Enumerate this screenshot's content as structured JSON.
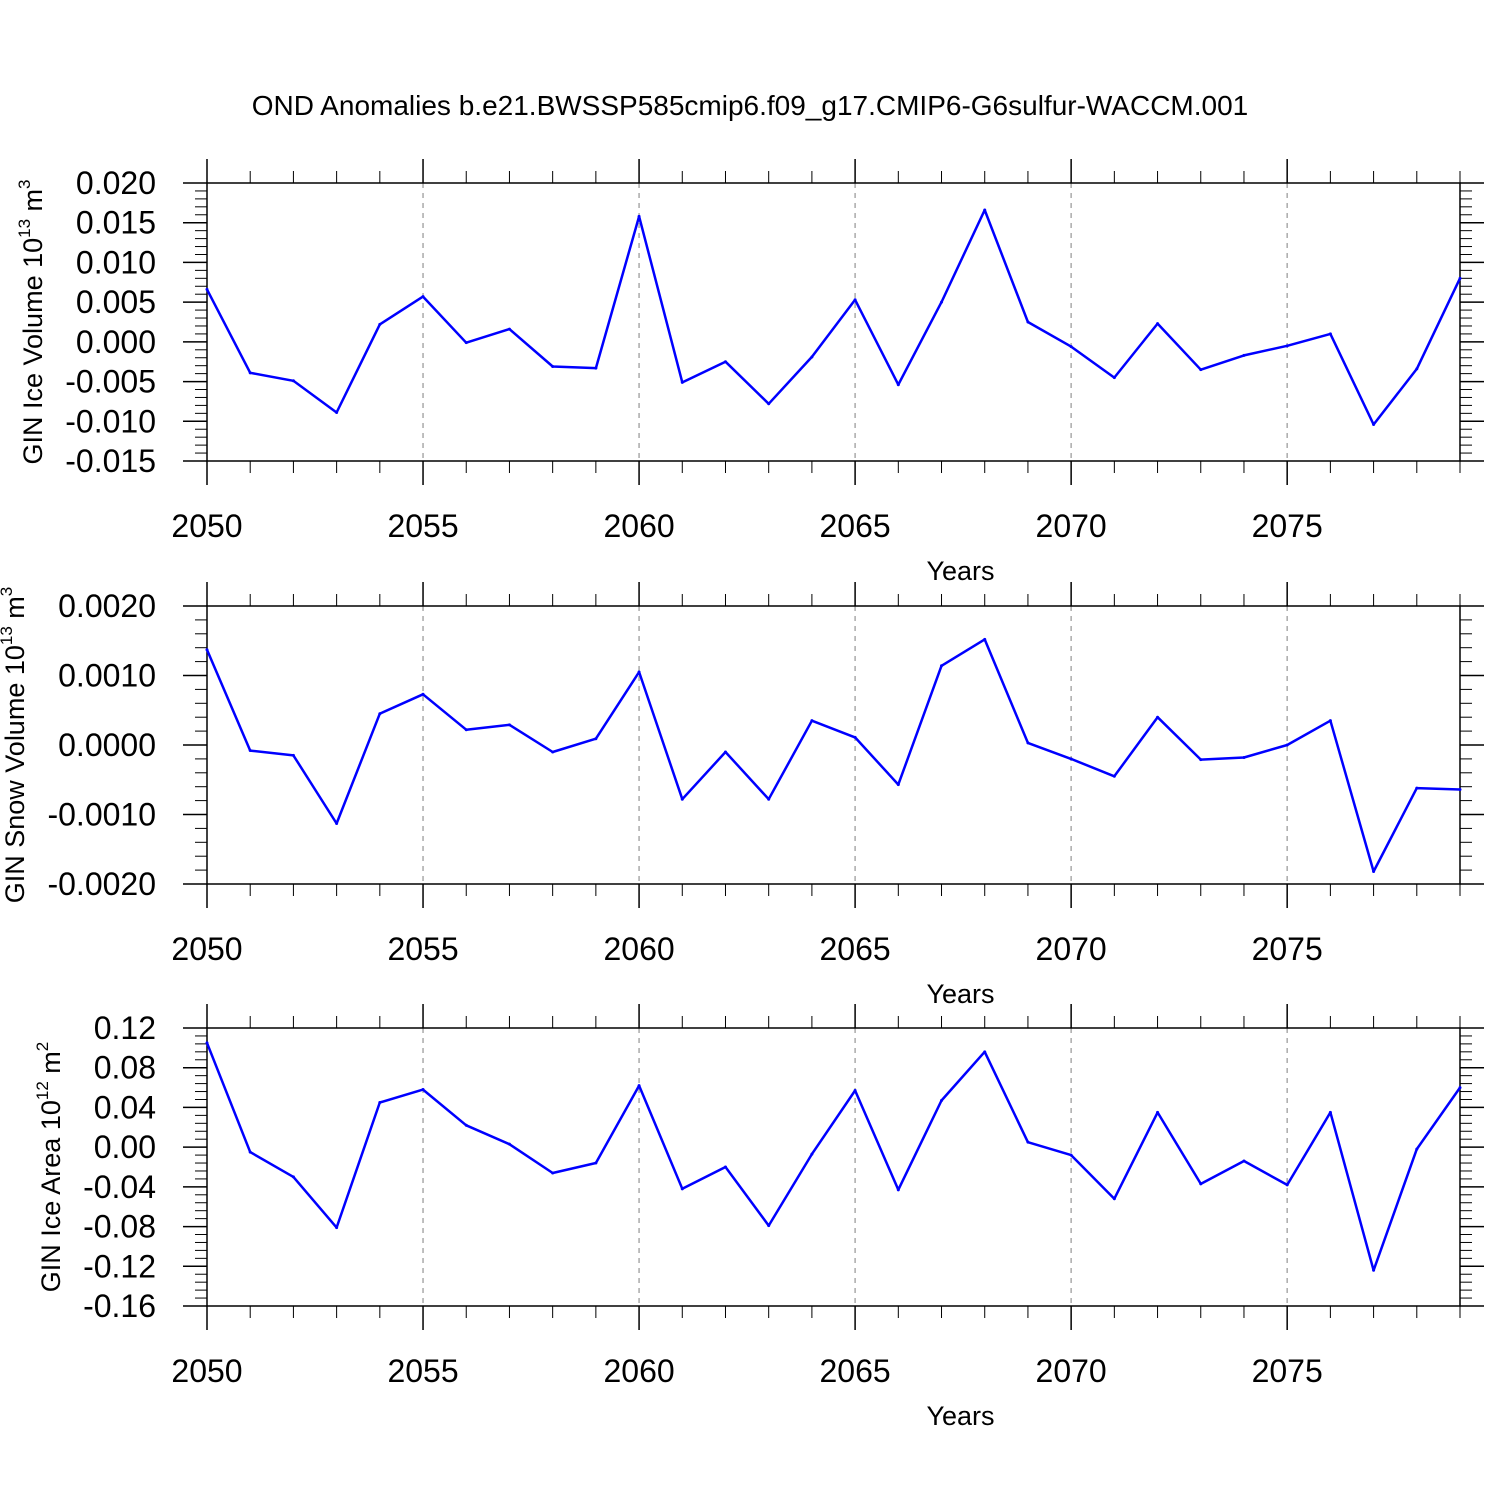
{
  "title": "OND Anomalies b.e21.BWSSP585cmip6.f09_g17.CMIP6-G6sulfur-WACCM.001",
  "colors": {
    "line": "#0000ff",
    "axis": "#000000",
    "grid": "#aaaaaa"
  },
  "chart_data": [
    {
      "type": "line",
      "xlabel": "Years",
      "ylabel_main": "GIN Ice Volume 10",
      "ylabel_exp": "13",
      "ylabel_unit": "m",
      "ylabel_unit_exp": "3",
      "xlim": [
        2050,
        2079
      ],
      "ylim": [
        -0.015,
        0.02
      ],
      "xticks": [
        2050,
        2055,
        2060,
        2065,
        2070,
        2075
      ],
      "xtick_labels": [
        "2050",
        "2055",
        "2060",
        "2065",
        "2070",
        "2075"
      ],
      "yticks": [
        -0.015,
        -0.01,
        -0.005,
        0.0,
        0.005,
        0.01,
        0.015,
        0.02
      ],
      "ytick_labels": [
        "-0.015",
        "-0.010",
        "-0.005",
        "0.000",
        "0.005",
        "0.010",
        "0.015",
        "0.020"
      ],
      "grid": "vertical dashed at major x ticks",
      "x": [
        2050,
        2051,
        2052,
        2053,
        2054,
        2055,
        2056,
        2057,
        2058,
        2059,
        2060,
        2061,
        2062,
        2063,
        2064,
        2065,
        2066,
        2067,
        2068,
        2069,
        2070,
        2071,
        2072,
        2073,
        2074,
        2075,
        2076,
        2077,
        2078,
        2079
      ],
      "values": [
        0.0066,
        -0.0039,
        -0.0049,
        -0.0089,
        0.0022,
        0.0057,
        -0.0001,
        0.0016,
        -0.0031,
        -0.0033,
        0.0158,
        -0.0051,
        -0.0025,
        -0.0078,
        -0.0019,
        0.0053,
        -0.0054,
        0.005,
        0.0166,
        0.0025,
        -0.0006,
        -0.0045,
        0.0023,
        -0.0035,
        -0.0017,
        -0.0005,
        0.001,
        -0.0104,
        -0.0034,
        0.008
      ]
    },
    {
      "type": "line",
      "xlabel": "Years",
      "ylabel_main": "GIN Snow Volume 10",
      "ylabel_exp": "13",
      "ylabel_unit": "m",
      "ylabel_unit_exp": "3",
      "xlim": [
        2050,
        2079
      ],
      "ylim": [
        -0.002,
        0.002
      ],
      "xticks": [
        2050,
        2055,
        2060,
        2065,
        2070,
        2075
      ],
      "xtick_labels": [
        "2050",
        "2055",
        "2060",
        "2065",
        "2070",
        "2075"
      ],
      "yticks": [
        -0.002,
        -0.001,
        0.0,
        0.001,
        0.002
      ],
      "ytick_labels": [
        "-0.0020",
        "-0.0010",
        "0.0000",
        "0.0010",
        "0.0020"
      ],
      "grid": "vertical dashed at major x ticks",
      "x": [
        2050,
        2051,
        2052,
        2053,
        2054,
        2055,
        2056,
        2057,
        2058,
        2059,
        2060,
        2061,
        2062,
        2063,
        2064,
        2065,
        2066,
        2067,
        2068,
        2069,
        2070,
        2071,
        2072,
        2073,
        2074,
        2075,
        2076,
        2077,
        2078,
        2079
      ],
      "values": [
        0.00137,
        -8e-05,
        -0.00015,
        -0.00113,
        0.00045,
        0.00073,
        0.00022,
        0.00029,
        -0.0001,
        9e-05,
        0.00105,
        -0.00078,
        -0.0001,
        -0.00078,
        0.00035,
        0.00011,
        -0.00057,
        0.00114,
        0.00152,
        3e-05,
        -0.0002,
        -0.00045,
        0.0004,
        -0.00021,
        -0.00018,
        0.0,
        0.00035,
        -0.00182,
        -0.00062,
        -0.00064
      ]
    },
    {
      "type": "line",
      "xlabel": "Years",
      "ylabel_main": "GIN Ice Area 10",
      "ylabel_exp": "12",
      "ylabel_unit": "m",
      "ylabel_unit_exp": "2",
      "xlim": [
        2050,
        2079
      ],
      "ylim": [
        -0.16,
        0.12
      ],
      "xticks": [
        2050,
        2055,
        2060,
        2065,
        2070,
        2075
      ],
      "xtick_labels": [
        "2050",
        "2055",
        "2060",
        "2065",
        "2070",
        "2075"
      ],
      "yticks": [
        -0.16,
        -0.12,
        -0.08,
        -0.04,
        0.0,
        0.04,
        0.08,
        0.12
      ],
      "ytick_labels": [
        "-0.16",
        "-0.12",
        "-0.08",
        "-0.04",
        "0.00",
        "0.04",
        "0.08",
        "0.12"
      ],
      "grid": "vertical dashed at major x ticks",
      "x": [
        2050,
        2051,
        2052,
        2053,
        2054,
        2055,
        2056,
        2057,
        2058,
        2059,
        2060,
        2061,
        2062,
        2063,
        2064,
        2065,
        2066,
        2067,
        2068,
        2069,
        2070,
        2071,
        2072,
        2073,
        2074,
        2075,
        2076,
        2077,
        2078,
        2079
      ],
      "values": [
        0.105,
        -0.005,
        -0.03,
        -0.081,
        0.045,
        0.058,
        0.022,
        0.003,
        -0.026,
        -0.016,
        0.062,
        -0.042,
        -0.02,
        -0.079,
        -0.007,
        0.057,
        -0.043,
        0.047,
        0.096,
        0.005,
        -0.008,
        -0.052,
        0.035,
        -0.037,
        -0.014,
        -0.038,
        0.035,
        -0.124,
        -0.002,
        0.06
      ]
    }
  ]
}
